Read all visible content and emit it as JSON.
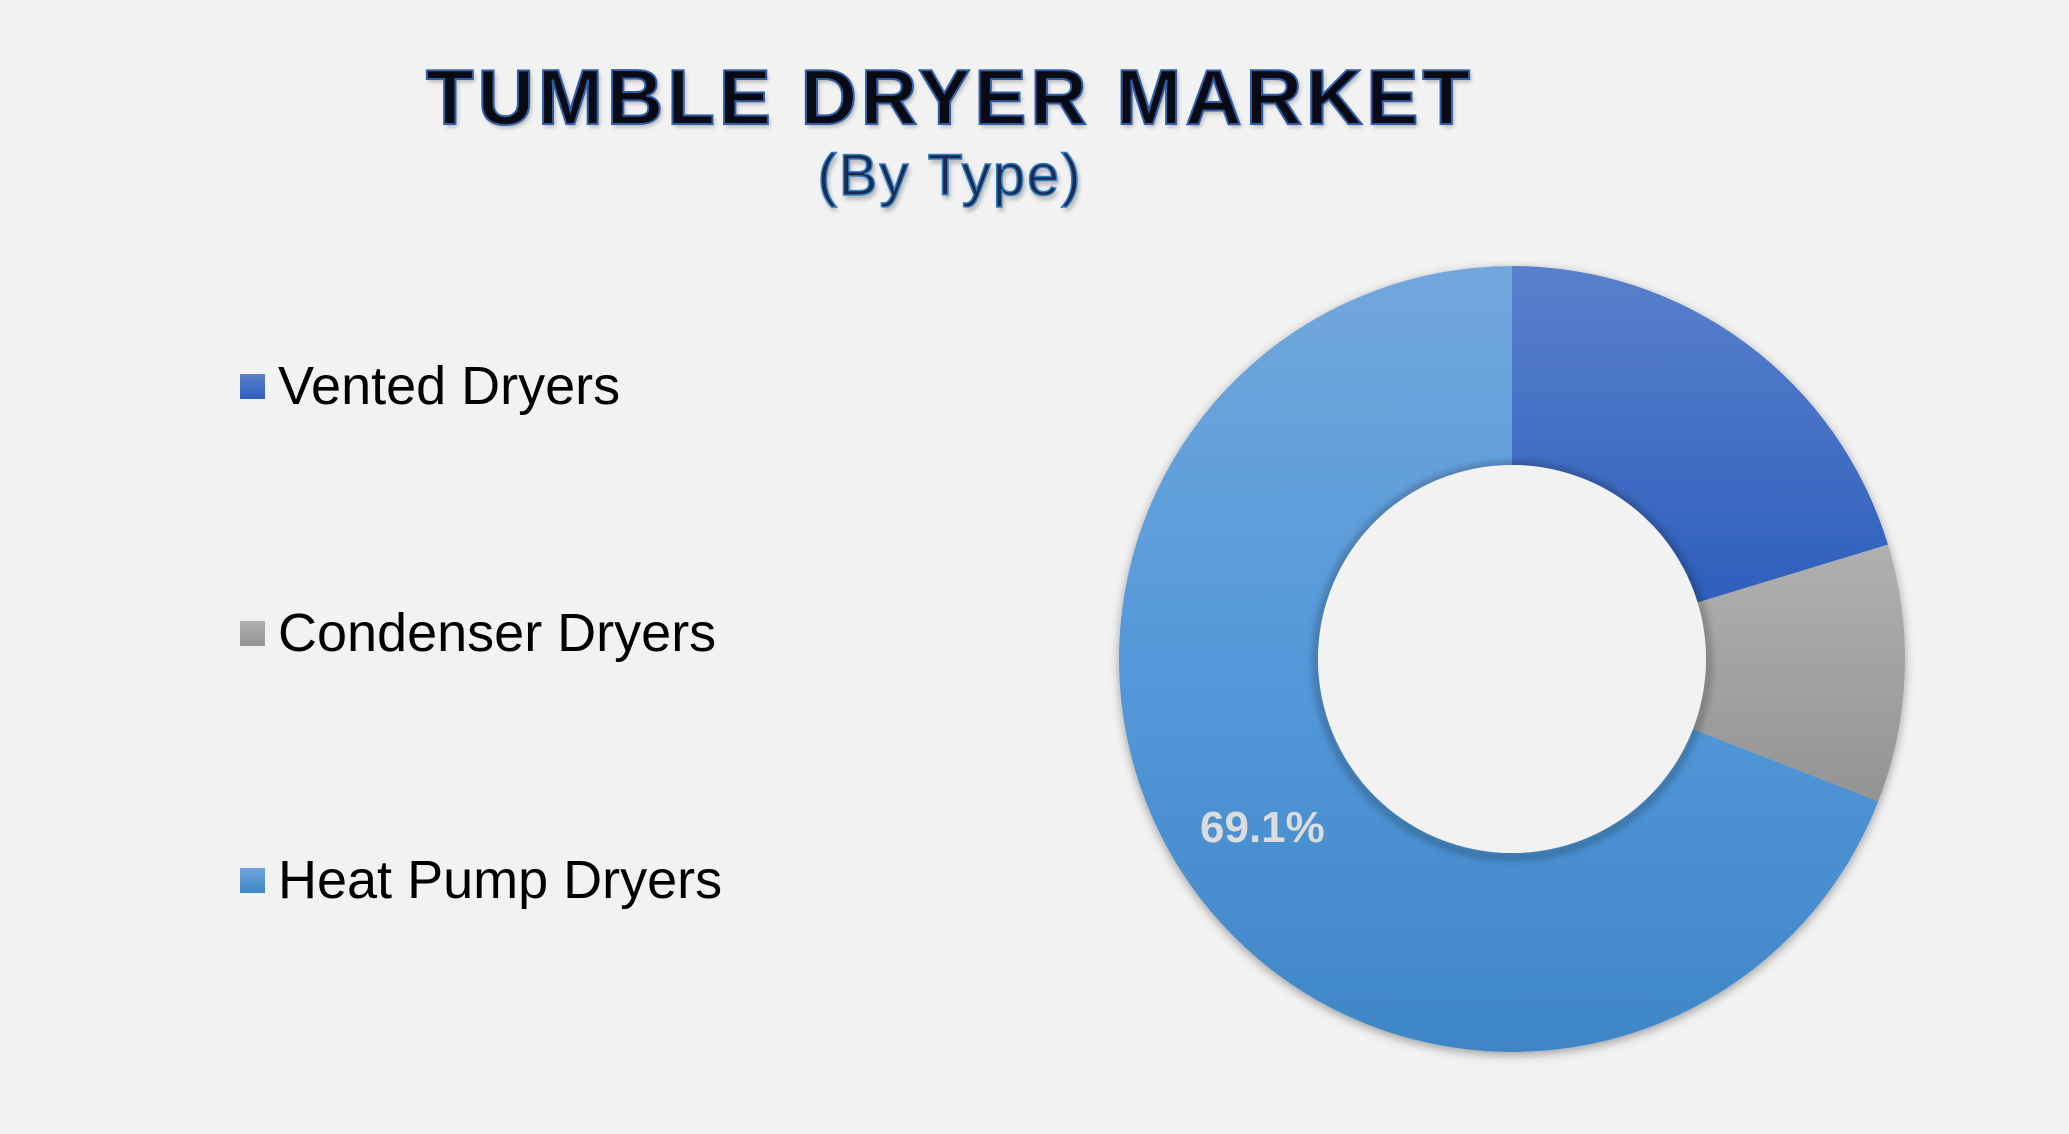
{
  "title": "TUMBLE DRYER MARKET",
  "subtitle": "(By Type)",
  "legend": [
    {
      "label": "Vented Dryers",
      "color_top": "#5a80cc",
      "color_bottom": "#2e5fbc"
    },
    {
      "label": "Condenser Dryers",
      "color_top": "#b0b0b0",
      "color_bottom": "#949494"
    },
    {
      "label": "Heat Pump Dryers",
      "color_top": "#6ea6dc",
      "color_bottom": "#3f88c8"
    }
  ],
  "data_labels": {
    "heat_pump": "69.1%"
  },
  "chart_data": {
    "type": "pie",
    "variant": "donut",
    "title": "TUMBLE DRYER MARKET",
    "subtitle": "(By Type)",
    "categories": [
      "Vented Dryers",
      "Condenser Dryers",
      "Heat Pump Dryers"
    ],
    "values": [
      20.3,
      10.6,
      69.1
    ],
    "unit": "%",
    "data_labels_shown": {
      "Heat Pump Dryers": "69.1%"
    },
    "colors": [
      "#3f6cc6",
      "#a3a3a3",
      "#4f93d4"
    ],
    "legend_position": "left",
    "start_angle_deg": 0,
    "direction": "clockwise"
  }
}
